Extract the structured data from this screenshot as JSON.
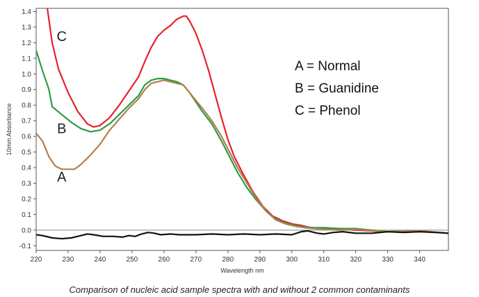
{
  "caption": "Comparison of nucleic acid sample spectra with and without 2 common contaminants",
  "chart_data": {
    "type": "line",
    "title": "",
    "xlabel": "Wavelength nm",
    "ylabel": "10mm Absorbance",
    "xlim": [
      220,
      349
    ],
    "ylim": [
      -0.13,
      1.42
    ],
    "xticks": [
      "220",
      "230",
      "240",
      "250",
      "260",
      "270",
      "280",
      "290",
      "300",
      "310",
      "320",
      "330",
      "340"
    ],
    "yticks": [
      "-0.1",
      "0.0",
      "0.1",
      "0.2",
      "0.3",
      "0.4",
      "0.5",
      "0.6",
      "0.7",
      "0.8",
      "0.9",
      "1.0",
      "1.1",
      "1.2",
      "1.3",
      "1.4"
    ],
    "grid": false,
    "legend": [
      "A = Normal",
      "B = Guanidine",
      "C = Phenol"
    ],
    "legend_position": "top-right",
    "series": [
      {
        "name": "C",
        "color": "#e8202a",
        "points": [
          [
            223.5,
            1.42
          ],
          [
            225,
            1.2
          ],
          [
            227,
            1.03
          ],
          [
            230,
            0.88
          ],
          [
            233,
            0.76
          ],
          [
            236,
            0.68
          ],
          [
            238,
            0.66
          ],
          [
            240,
            0.67
          ],
          [
            243,
            0.72
          ],
          [
            246,
            0.8
          ],
          [
            249,
            0.89
          ],
          [
            252,
            0.98
          ],
          [
            254,
            1.08
          ],
          [
            256,
            1.17
          ],
          [
            258,
            1.24
          ],
          [
            260,
            1.28
          ],
          [
            262,
            1.31
          ],
          [
            264,
            1.35
          ],
          [
            266,
            1.37
          ],
          [
            267,
            1.37
          ],
          [
            268,
            1.34
          ],
          [
            270,
            1.26
          ],
          [
            272,
            1.15
          ],
          [
            274,
            1.02
          ],
          [
            276,
            0.87
          ],
          [
            278,
            0.72
          ],
          [
            280,
            0.58
          ],
          [
            282,
            0.47
          ],
          [
            285,
            0.35
          ],
          [
            288,
            0.24
          ],
          [
            291,
            0.15
          ],
          [
            294,
            0.09
          ],
          [
            297,
            0.06
          ],
          [
            300,
            0.04
          ],
          [
            303,
            0.03
          ],
          [
            306,
            0.015
          ],
          [
            310,
            0.01
          ],
          [
            315,
            0.005
          ],
          [
            320,
            0.0
          ],
          [
            330,
            -0.01
          ],
          [
            340,
            -0.005
          ],
          [
            349,
            -0.02
          ]
        ]
      },
      {
        "name": "B",
        "color": "#2f9b47",
        "points": [
          [
            220,
            1.15
          ],
          [
            222,
            1.02
          ],
          [
            224,
            0.9
          ],
          [
            225,
            0.79
          ],
          [
            228,
            0.74
          ],
          [
            231,
            0.69
          ],
          [
            234,
            0.65
          ],
          [
            237,
            0.63
          ],
          [
            240,
            0.64
          ],
          [
            243,
            0.68
          ],
          [
            246,
            0.74
          ],
          [
            249,
            0.8
          ],
          [
            252,
            0.86
          ],
          [
            254,
            0.93
          ],
          [
            256,
            0.96
          ],
          [
            258,
            0.97
          ],
          [
            260,
            0.97
          ],
          [
            262,
            0.96
          ],
          [
            264,
            0.95
          ],
          [
            266,
            0.93
          ],
          [
            268,
            0.88
          ],
          [
            270,
            0.82
          ],
          [
            272,
            0.76
          ],
          [
            275,
            0.68
          ],
          [
            278,
            0.57
          ],
          [
            280,
            0.49
          ],
          [
            283,
            0.37
          ],
          [
            286,
            0.27
          ],
          [
            289,
            0.19
          ],
          [
            292,
            0.12
          ],
          [
            295,
            0.07
          ],
          [
            298,
            0.045
          ],
          [
            301,
            0.03
          ],
          [
            304,
            0.02
          ],
          [
            307,
            0.015
          ],
          [
            310,
            0.015
          ],
          [
            315,
            0.01
          ],
          [
            320,
            0.01
          ],
          [
            330,
            -0.01
          ],
          [
            340,
            -0.005
          ],
          [
            349,
            -0.02
          ]
        ]
      },
      {
        "name": "A",
        "color": "#b08050",
        "points": [
          [
            220,
            0.62
          ],
          [
            222,
            0.57
          ],
          [
            224,
            0.47
          ],
          [
            226,
            0.41
          ],
          [
            228,
            0.39
          ],
          [
            230,
            0.39
          ],
          [
            232,
            0.39
          ],
          [
            234,
            0.42
          ],
          [
            237,
            0.48
          ],
          [
            240,
            0.55
          ],
          [
            243,
            0.64
          ],
          [
            246,
            0.71
          ],
          [
            249,
            0.78
          ],
          [
            252,
            0.84
          ],
          [
            254,
            0.9
          ],
          [
            256,
            0.94
          ],
          [
            258,
            0.95
          ],
          [
            260,
            0.96
          ],
          [
            262,
            0.95
          ],
          [
            264,
            0.94
          ],
          [
            266,
            0.93
          ],
          [
            268,
            0.88
          ],
          [
            270,
            0.83
          ],
          [
            272,
            0.78
          ],
          [
            275,
            0.7
          ],
          [
            278,
            0.6
          ],
          [
            280,
            0.52
          ],
          [
            283,
            0.4
          ],
          [
            286,
            0.3
          ],
          [
            289,
            0.2
          ],
          [
            292,
            0.12
          ],
          [
            295,
            0.065
          ],
          [
            298,
            0.04
          ],
          [
            301,
            0.025
          ],
          [
            304,
            0.015
          ],
          [
            307,
            0.01
          ],
          [
            310,
            0.005
          ],
          [
            315,
            0.0
          ],
          [
            320,
            0.005
          ],
          [
            330,
            -0.01
          ],
          [
            340,
            -0.005
          ],
          [
            349,
            -0.02
          ]
        ]
      },
      {
        "name": "",
        "color": "#111111",
        "points": [
          [
            220,
            -0.03
          ],
          [
            222,
            -0.035
          ],
          [
            225,
            -0.05
          ],
          [
            228,
            -0.055
          ],
          [
            231,
            -0.05
          ],
          [
            233,
            -0.04
          ],
          [
            236,
            -0.025
          ],
          [
            238,
            -0.03
          ],
          [
            241,
            -0.04
          ],
          [
            244,
            -0.04
          ],
          [
            247,
            -0.045
          ],
          [
            249,
            -0.035
          ],
          [
            251,
            -0.04
          ],
          [
            253,
            -0.025
          ],
          [
            255,
            -0.015
          ],
          [
            257,
            -0.02
          ],
          [
            259,
            -0.03
          ],
          [
            262,
            -0.025
          ],
          [
            265,
            -0.03
          ],
          [
            270,
            -0.03
          ],
          [
            275,
            -0.025
          ],
          [
            280,
            -0.03
          ],
          [
            285,
            -0.025
          ],
          [
            290,
            -0.03
          ],
          [
            295,
            -0.025
          ],
          [
            300,
            -0.03
          ],
          [
            303,
            -0.01
          ],
          [
            305,
            -0.005
          ],
          [
            308,
            -0.02
          ],
          [
            310,
            -0.025
          ],
          [
            313,
            -0.015
          ],
          [
            316,
            -0.01
          ],
          [
            320,
            -0.02
          ],
          [
            325,
            -0.02
          ],
          [
            330,
            -0.01
          ],
          [
            335,
            -0.015
          ],
          [
            340,
            -0.01
          ],
          [
            345,
            -0.015
          ],
          [
            349,
            -0.02
          ]
        ]
      }
    ],
    "curve_labels": [
      {
        "text": "C",
        "x": 228,
        "y": 1.21
      },
      {
        "text": "B",
        "x": 228,
        "y": 0.62
      },
      {
        "text": "A",
        "x": 228,
        "y": 0.31
      }
    ],
    "baseline_y": 0.0
  }
}
